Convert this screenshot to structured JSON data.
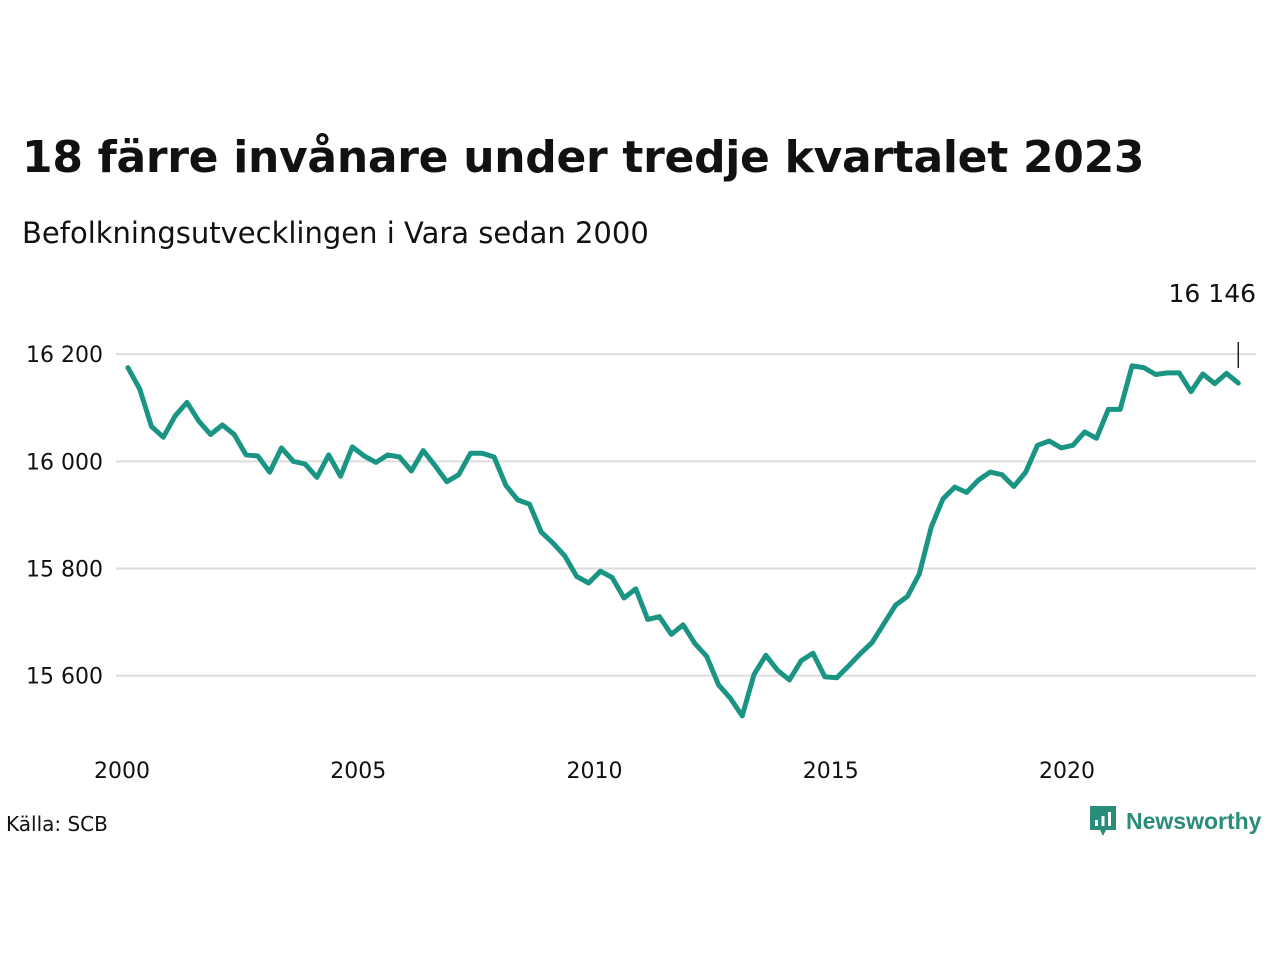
{
  "header": {
    "title": "18 färre invånare under tredje kvartalet 2023",
    "subtitle": "Befolkningsutvecklingen i Vara sedan 2000"
  },
  "footer": {
    "source": "Källa: SCB",
    "brand": "Newsworthy"
  },
  "colors": {
    "line": "#1a9483",
    "grid": "#dddddd",
    "brand": "#2a8c7a"
  },
  "icons": {
    "brand_logo": "newsworthy-logo-icon"
  },
  "chart_data": {
    "type": "line",
    "title": "18 färre invånare under tredje kvartalet 2023",
    "subtitle": "Befolkningsutvecklingen i Vara sedan 2000",
    "xlabel": "",
    "ylabel": "",
    "xlim": [
      2000,
      2024
    ],
    "ylim": [
      15480,
      16260
    ],
    "grid": true,
    "y_ticks": [
      15600,
      15800,
      16000,
      16200
    ],
    "y_tick_labels": [
      "15 600",
      "15 800",
      "16 000",
      "16 200"
    ],
    "x_ticks": [
      2000,
      2005,
      2010,
      2015,
      2020
    ],
    "x_tick_labels": [
      "2000",
      "2005",
      "2010",
      "2015",
      "2020"
    ],
    "end_label": "16 146",
    "series": [
      {
        "quarters": [
          "2000Q1",
          "2000Q2",
          "2000Q3",
          "2000Q4",
          "2001Q1",
          "2001Q2",
          "2001Q3",
          "2001Q4",
          "2002Q1",
          "2002Q2",
          "2002Q3",
          "2002Q4",
          "2003Q1",
          "2003Q2",
          "2003Q3",
          "2003Q4",
          "2004Q1",
          "2004Q2",
          "2004Q3",
          "2004Q4",
          "2005Q1",
          "2005Q2",
          "2005Q3",
          "2005Q4",
          "2006Q1",
          "2006Q2",
          "2006Q3",
          "2006Q4",
          "2007Q1",
          "2007Q2",
          "2007Q3",
          "2007Q4",
          "2008Q1",
          "2008Q2",
          "2008Q3",
          "2008Q4",
          "2009Q1",
          "2009Q2",
          "2009Q3",
          "2009Q4",
          "2010Q1",
          "2010Q2",
          "2010Q3",
          "2010Q4",
          "2011Q1",
          "2011Q2",
          "2011Q3",
          "2011Q4",
          "2012Q1",
          "2012Q2",
          "2012Q3",
          "2012Q4",
          "2013Q1",
          "2013Q2",
          "2013Q3",
          "2013Q4",
          "2014Q1",
          "2014Q2",
          "2014Q3",
          "2014Q4",
          "2015Q1",
          "2015Q2",
          "2015Q3",
          "2015Q4",
          "2016Q1",
          "2016Q2",
          "2016Q3",
          "2016Q4",
          "2017Q1",
          "2017Q2",
          "2017Q3",
          "2017Q4",
          "2018Q1",
          "2018Q2",
          "2018Q3",
          "2018Q4",
          "2019Q1",
          "2019Q2",
          "2019Q3",
          "2019Q4",
          "2020Q1",
          "2020Q2",
          "2020Q3",
          "2020Q4",
          "2021Q1",
          "2021Q2",
          "2021Q3",
          "2021Q4",
          "2022Q1",
          "2022Q2",
          "2022Q3",
          "2022Q4",
          "2023Q1",
          "2023Q2",
          "2023Q3"
        ],
        "values": [
          16175,
          16135,
          16065,
          16045,
          16085,
          16110,
          16075,
          16050,
          16068,
          16050,
          16012,
          16010,
          15980,
          16025,
          16000,
          15995,
          15970,
          16012,
          15972,
          16027,
          16010,
          15998,
          16012,
          16008,
          15982,
          16020,
          15992,
          15962,
          15975,
          16015,
          16015,
          16008,
          15955,
          15928,
          15920,
          15868,
          15847,
          15823,
          15785,
          15773,
          15795,
          15783,
          15745,
          15762,
          15705,
          15710,
          15677,
          15695,
          15660,
          15636,
          15583,
          15558,
          15525,
          15602,
          15638,
          15610,
          15592,
          15628,
          15642,
          15598,
          15596,
          15618,
          15641,
          15662,
          15697,
          15732,
          15748,
          15790,
          15877,
          15930,
          15952,
          15942,
          15965,
          15980,
          15975,
          15953,
          15980,
          16030,
          16038,
          16025,
          16030,
          16055,
          16043,
          16097,
          16097,
          16178,
          16175,
          16162,
          16165,
          16165,
          16130,
          16163,
          16145,
          16164,
          16146
        ]
      }
    ]
  }
}
